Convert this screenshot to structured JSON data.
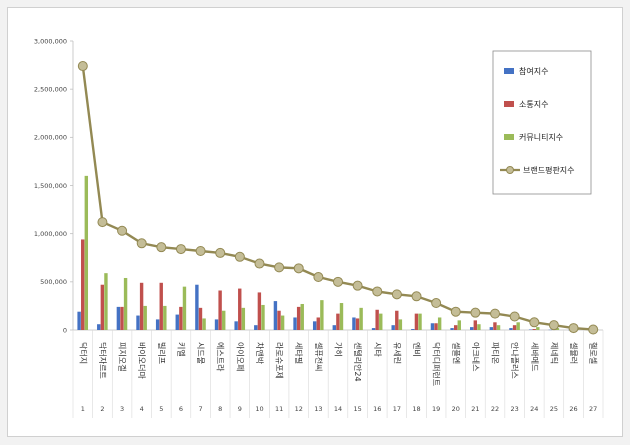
{
  "chart_data": {
    "type": "bar",
    "ylim": [
      0,
      3000000
    ],
    "yticks": [
      "3,000,000",
      "2,500,000",
      "2,000,000",
      "1,500,000",
      "1,000,000",
      "500,000",
      "0"
    ],
    "categories": [
      "닥터지",
      "닥터자르트",
      "피지오겔",
      "바이오더마",
      "빌리프",
      "키엘",
      "시드물",
      "에스트라",
      "아이오페",
      "차앤박",
      "라로슈포제",
      "세타필",
      "셀퓨전씨",
      "가히",
      "센텔리안24",
      "시타",
      "유세린",
      "엔비",
      "닥터디퍼런트",
      "셀플엔",
      "아크네스",
      "파티온",
      "안나플러스",
      "세바메드",
      "제네틱",
      "셀뮬러",
      "헬로셀"
    ],
    "indices": [
      "1",
      "2",
      "3",
      "4",
      "5",
      "6",
      "7",
      "8",
      "9",
      "10",
      "11",
      "12",
      "13",
      "14",
      "15",
      "16",
      "17",
      "18",
      "19",
      "20",
      "21",
      "22",
      "23",
      "24",
      "25",
      "26",
      "27"
    ],
    "series": [
      {
        "name": "참여지수",
        "kind": "bar",
        "color": "#4472c4",
        "values": [
          190000,
          60000,
          240000,
          150000,
          110000,
          160000,
          470000,
          110000,
          90000,
          50000,
          300000,
          130000,
          90000,
          50000,
          130000,
          20000,
          50000,
          10000,
          70000,
          20000,
          30000,
          30000,
          20000,
          5000,
          3000,
          2000,
          1000
        ]
      },
      {
        "name": "소통지수",
        "kind": "bar",
        "color": "#c0504d",
        "values": [
          940000,
          470000,
          240000,
          490000,
          490000,
          240000,
          230000,
          410000,
          430000,
          390000,
          200000,
          240000,
          130000,
          170000,
          120000,
          210000,
          200000,
          170000,
          70000,
          50000,
          100000,
          80000,
          50000,
          10000,
          5000,
          3000,
          2000
        ]
      },
      {
        "name": "커뮤니티지수",
        "kind": "bar",
        "color": "#9bbb59",
        "values": [
          1600000,
          590000,
          540000,
          250000,
          250000,
          450000,
          120000,
          200000,
          230000,
          260000,
          150000,
          270000,
          310000,
          280000,
          230000,
          170000,
          110000,
          170000,
          130000,
          100000,
          60000,
          50000,
          80000,
          30000,
          20000,
          10000,
          5000
        ]
      },
      {
        "name": "브랜드평판지수",
        "kind": "line",
        "color": "#938953",
        "values": [
          2740000,
          1120000,
          1030000,
          900000,
          860000,
          840000,
          820000,
          800000,
          760000,
          690000,
          650000,
          640000,
          550000,
          500000,
          460000,
          400000,
          370000,
          350000,
          280000,
          190000,
          180000,
          170000,
          140000,
          80000,
          50000,
          20000,
          5000
        ]
      }
    ]
  }
}
